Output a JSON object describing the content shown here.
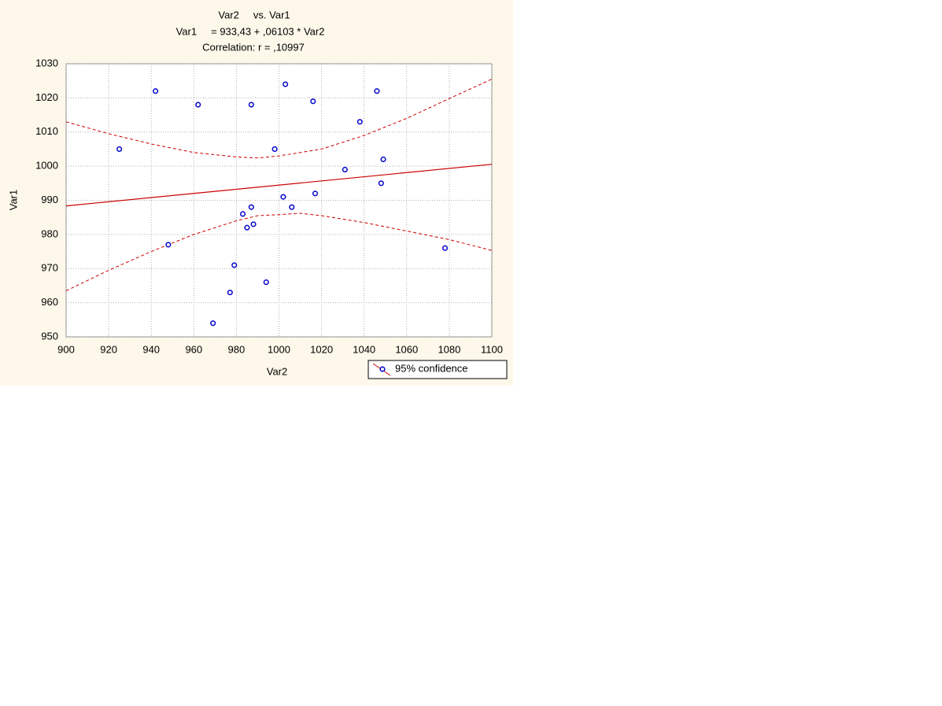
{
  "chart_data": {
    "type": "scatter",
    "title": "Var2     vs. Var1",
    "subtitle": "Var1     = 933,43 + ,06103 * Var2",
    "annotation": "Correlation: r = ,10997",
    "xlabel": "Var2",
    "ylabel": "Var1",
    "x": [
      925,
      942,
      948,
      962,
      969,
      977,
      979,
      983,
      985,
      987,
      988,
      987,
      994,
      998,
      1002,
      1003,
      1006,
      1016,
      1017,
      1031,
      1038,
      1046,
      1048,
      1049,
      1078
    ],
    "values": [
      1005,
      1022,
      977,
      1018,
      954,
      963,
      971,
      986,
      982,
      988,
      983,
      1018,
      966,
      1005,
      991,
      1024,
      988,
      1019,
      992,
      999,
      1013,
      1022,
      995,
      1002,
      976
    ],
    "color": "#0000cc",
    "fit": {
      "x": [
        900,
        1100
      ],
      "values": [
        988.36,
        1000.56
      ],
      "color": "#cc0000"
    },
    "confidence": {
      "x": [
        900,
        920,
        940,
        960,
        980,
        990,
        1000,
        1010,
        1020,
        1040,
        1060,
        1080,
        1100
      ],
      "upper": [
        1013,
        1009.5,
        1006.5,
        1004,
        1002.7,
        1002.4,
        1003,
        1004,
        1005,
        1009,
        1014,
        1019.8,
        1025.5
      ],
      "lower": [
        963.5,
        969.5,
        975,
        980,
        984,
        985.5,
        985.8,
        986.2,
        985.5,
        983.5,
        981,
        978.5,
        975.3
      ],
      "color": "#cc0000"
    },
    "legend": "95% confidence",
    "grid": true,
    "xlim": [
      900,
      1100
    ],
    "xticks": [
      900,
      920,
      940,
      960,
      980,
      1000,
      1020,
      1040,
      1060,
      1080,
      1100
    ],
    "ylim": [
      950,
      1030
    ],
    "yticks": [
      950,
      960,
      970,
      980,
      990,
      1000,
      1010,
      1020,
      1030
    ]
  }
}
